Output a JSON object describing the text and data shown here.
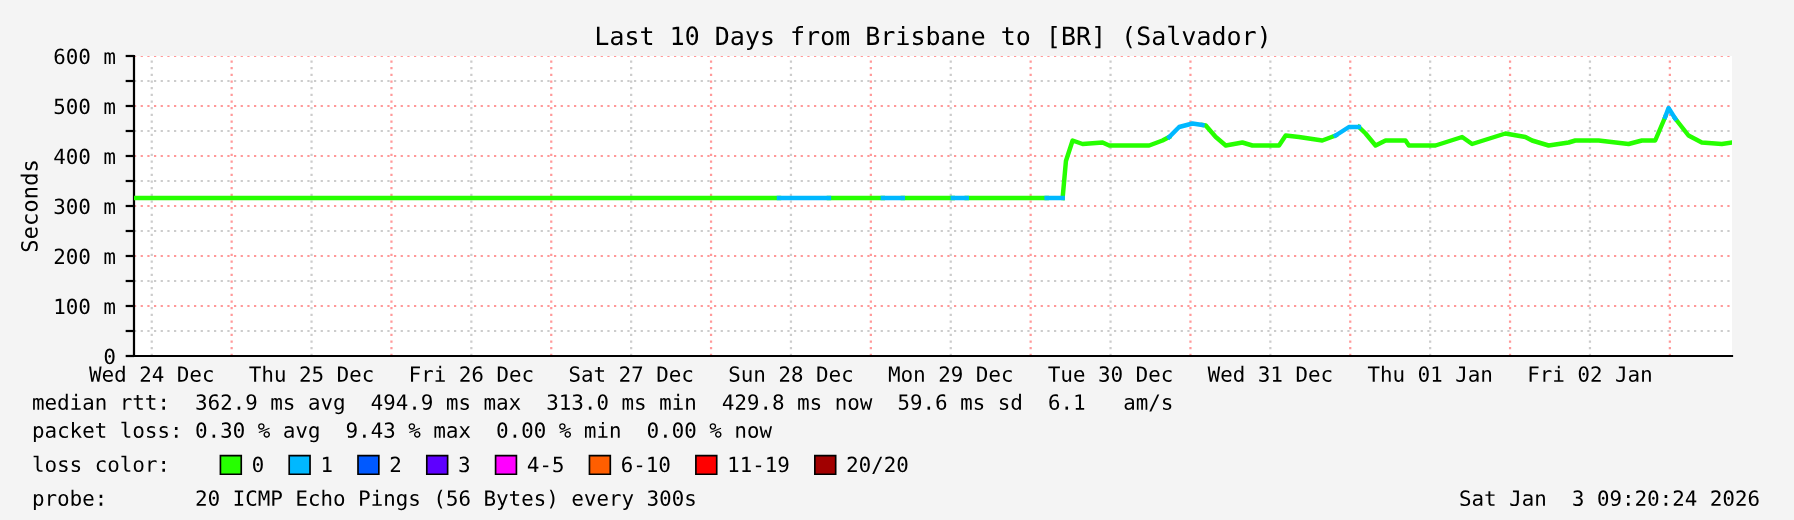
{
  "chart_data": {
    "type": "line",
    "title": "Last 10 Days from Brisbane to [BR] (Salvador)",
    "ylabel": "Seconds",
    "xlim": [
      "2025-12-24T09:20",
      "2026-01-03T09:20"
    ],
    "ylim": [
      0,
      600
    ],
    "xticks": [
      {
        "value": "2025-12-24T12:00",
        "label": "Wed 24 Dec"
      },
      {
        "value": "2025-12-25T00:00",
        "label": null
      },
      {
        "value": "2025-12-25T12:00",
        "label": "Thu 25 Dec"
      },
      {
        "value": "2025-12-26T00:00",
        "label": null
      },
      {
        "value": "2025-12-26T12:00",
        "label": "Fri 26 Dec"
      },
      {
        "value": "2025-12-27T00:00",
        "label": null
      },
      {
        "value": "2025-12-27T12:00",
        "label": "Sat 27 Dec"
      },
      {
        "value": "2025-12-28T00:00",
        "label": null
      },
      {
        "value": "2025-12-28T12:00",
        "label": "Sun 28 Dec"
      },
      {
        "value": "2025-12-29T00:00",
        "label": null
      },
      {
        "value": "2025-12-29T12:00",
        "label": "Mon 29 Dec"
      },
      {
        "value": "2025-12-30T00:00",
        "label": null
      },
      {
        "value": "2025-12-30T12:00",
        "label": "Tue 30 Dec"
      },
      {
        "value": "2025-12-31T00:00",
        "label": null
      },
      {
        "value": "2025-12-31T12:00",
        "label": "Wed 31 Dec"
      },
      {
        "value": "2026-01-01T00:00",
        "label": null
      },
      {
        "value": "2026-01-01T12:00",
        "label": "Thu 01 Jan"
      },
      {
        "value": "2026-01-02T00:00",
        "label": null
      },
      {
        "value": "2026-01-02T12:00",
        "label": "Fri 02 Jan"
      },
      {
        "value": "2026-01-03T00:00",
        "label": null
      }
    ],
    "yticks": [
      0,
      {
        "value": 50,
        "label": null
      },
      {
        "value": 100,
        "label": "100 m"
      },
      {
        "value": 150,
        "label": null
      },
      {
        "value": 200,
        "label": "200 m"
      },
      {
        "value": 250,
        "label": null
      },
      {
        "value": 300,
        "label": "300 m"
      },
      {
        "value": 350,
        "label": null
      },
      {
        "value": 400,
        "label": "400 m"
      },
      {
        "value": 450,
        "label": null
      },
      {
        "value": 500,
        "label": "500 m"
      },
      {
        "value": 550,
        "label": null
      },
      {
        "value": 600,
        "label": "600 m"
      }
    ],
    "grid": true,
    "legend": "bottom",
    "legend_title": "loss color:",
    "marker": "none",
    "line_style": "solid",
    "series": [
      {
        "name": "0",
        "color": "#26ff00",
        "x": [
          "2025-12-24T09:20",
          "2025-12-25T00:00",
          "2025-12-26T00:00",
          "2025-12-27T00:00",
          "2025-12-28T00:00",
          "2025-12-28T10:12",
          "2025-12-28T12:00",
          "2025-12-28T17:42",
          "2025-12-29T00:00",
          "2025-12-29T01:48",
          "2025-12-29T03:00",
          "2025-12-29T04:48",
          "2025-12-29T12:18",
          "2025-12-29T13:00",
          "2025-12-29T14:24",
          "2025-12-30T00:00",
          "2025-12-30T02:24",
          "2025-12-30T03:00",
          "2025-12-30T04:48",
          "2025-12-30T05:18",
          "2025-12-30T06:18",
          "2025-12-30T07:48",
          "2025-12-30T10:48",
          "2025-12-30T11:48",
          "2025-12-30T17:48",
          "2025-12-30T19:48",
          "2025-12-30T20:48",
          "2025-12-30T22:00",
          "2025-12-31T01:48",
          "2025-12-31T02:18",
          "2025-12-31T03:48",
          "2025-12-31T05:18",
          "2025-12-31T07:48",
          "2025-12-31T09:18",
          "2025-12-31T13:18",
          "2025-12-31T14:18",
          "2025-12-31T16:18",
          "2025-12-31T19:48",
          "2025-12-31T21:48",
          "2025-12-31T23:00",
          "2026-01-01T01:18",
          "2026-01-01T02:18",
          "2026-01-01T03:48",
          "2026-01-01T05:18",
          "2026-01-01T08:18",
          "2026-01-01T08:48",
          "2026-01-01T12:48",
          "2026-01-01T16:48",
          "2026-01-01T18:18",
          "2026-01-01T23:18",
          "2026-01-02T02:18",
          "2026-01-02T03:18",
          "2026-01-02T05:48",
          "2026-01-02T08:48",
          "2026-01-02T09:48",
          "2026-01-02T13:18",
          "2026-01-02T17:48",
          "2026-01-02T19:48",
          "2026-01-02T21:48",
          "2026-01-02T23:18",
          "2026-01-02T23:30",
          "2026-01-03T00:48",
          "2026-01-03T02:48",
          "2026-01-03T04:48",
          "2026-01-03T07:48",
          "2026-01-03T09:18"
        ],
        "values": [
          316,
          316,
          316,
          316,
          316,
          316,
          null,
          316,
          316,
          316,
          null,
          316,
          316,
          null,
          316,
          316,
          316,
          null,
          316,
          390,
          431,
          424,
          427,
          421,
          421,
          431,
          438,
          null,
          462,
          461,
          438,
          421,
          427,
          421,
          421,
          441,
          438,
          431,
          441,
          null,
          458,
          445,
          421,
          431,
          431,
          421,
          421,
          438,
          424,
          445,
          438,
          431,
          421,
          427,
          431,
          431,
          424,
          431,
          431,
          478,
          null,
          475,
          441,
          427,
          424,
          427
        ]
      },
      {
        "name": "1",
        "color": "#00b8ff",
        "x": [
          "2025-12-28T10:12",
          "2025-12-28T13:48",
          "2025-12-28T14:42",
          "2025-12-28T17:42",
          "2025-12-28T18:00",
          "2025-12-29T01:48",
          "2025-12-29T04:48",
          "2025-12-29T05:00",
          "2025-12-29T12:18",
          "2025-12-29T14:24",
          "2025-12-29T15:00",
          "2025-12-30T02:24",
          "2025-12-30T04:48",
          "2025-12-30T05:00",
          "2025-12-30T20:48",
          "2025-12-30T22:18",
          "2025-12-31T00:18",
          "2025-12-31T01:48",
          "2025-12-31T02:00",
          "2025-12-31T21:48",
          "2025-12-31T23:48",
          "2026-01-01T01:18",
          "2026-01-01T01:30",
          "2026-01-02T23:18",
          "2026-01-02T23:48",
          "2026-01-03T00:48"
        ],
        "values": [
          316,
          316,
          316,
          316,
          null,
          316,
          316,
          null,
          316,
          316,
          null,
          316,
          316,
          null,
          438,
          458,
          465,
          462,
          null,
          441,
          458,
          458,
          null,
          478,
          496,
          475
        ]
      },
      {
        "name": "2",
        "color": "#0059ff"
      },
      {
        "name": "3",
        "color": "#5e00ff"
      },
      {
        "name": "4-5",
        "color": "#ff00ff"
      },
      {
        "name": "6-10",
        "color": "#ff5e00"
      },
      {
        "name": "11-19",
        "color": "#ff0000"
      },
      {
        "name": "20/20",
        "color": "#a10000"
      }
    ],
    "annotations": [
      "median rtt:  362.9 ms avg  494.9 ms max  313.0 ms min  429.8 ms now  59.6 ms sd  6.1   am/s",
      "packet loss: 0.30 % avg  9.43 % max  0.00 % min  0.00 % now",
      "probe:       20 ICMP Echo Pings (56 Bytes) every 300s",
      "Sat Jan  3 09:20:24 2026"
    ]
  }
}
